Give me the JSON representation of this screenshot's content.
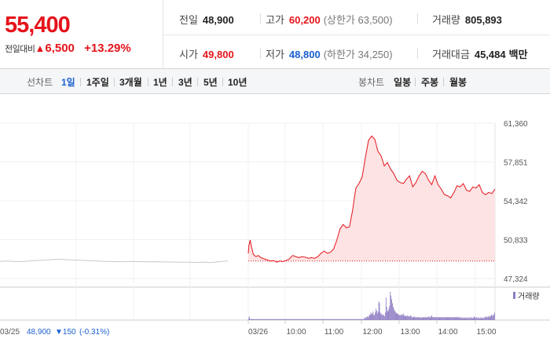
{
  "quote": {
    "price": "55,400",
    "change_label": "전일대비",
    "change_arrow": "▲",
    "change_value": "6,500",
    "change_pct": "+13.29%"
  },
  "stats": {
    "prev_label": "전일",
    "prev_value": "48,900",
    "high_label": "고가",
    "high_value": "60,200",
    "high_sub": "(상한가 63,500)",
    "volume_label": "거래량",
    "volume_value": "805,893",
    "open_label": "시가",
    "open_value": "49,800",
    "low_label": "저가",
    "low_value": "48,800",
    "low_sub": "(하한가 34,250)",
    "amount_label": "거래대금",
    "amount_value": "45,484",
    "amount_unit": "백만"
  },
  "tabs": {
    "line_label": "선차트",
    "line_tabs": [
      "1일",
      "1주일",
      "3개월",
      "1년",
      "3년",
      "5년",
      "10년"
    ],
    "line_active": 0,
    "candle_label": "봉차트",
    "candle_tabs": [
      "일봉",
      "주봉",
      "월봉"
    ]
  },
  "colors": {
    "up": "#e5141b",
    "down": "#1a5fd0",
    "prev_day_line": "#c8c8c8",
    "area_fill": "#fde3e3",
    "volume_bar": "#8e7cc3"
  },
  "chart_data": {
    "type": "line",
    "y_ticks": [
      "61,360",
      "57,851",
      "54,342",
      "50,833",
      "47,324"
    ],
    "ylim": [
      47324,
      61360
    ],
    "x_ticks": [
      "03/25",
      "03/26",
      "10:00",
      "11:00",
      "12:00",
      "13:00",
      "14:00",
      "15:00"
    ],
    "prev_day_info": {
      "date": "03/25",
      "price": "48,900",
      "change": "▼150",
      "pct": "(-0.31%)"
    },
    "volume_legend": "거래량",
    "prev_day_series": {
      "name": "03/25",
      "values": [
        48860,
        48900,
        48840,
        48870,
        48930,
        48960,
        49010,
        49060,
        49030,
        49000,
        48960,
        48930,
        48900,
        48870,
        48850,
        48840,
        48860,
        48850,
        48830,
        48840,
        48820,
        48810,
        48790,
        48800,
        48780,
        48790,
        48760,
        48850,
        48900
      ]
    },
    "today_series": {
      "name": "03/26",
      "x": [
        0,
        1,
        3,
        5,
        8,
        12,
        16,
        20,
        25,
        30,
        35,
        40,
        45,
        50,
        55,
        60,
        65,
        70,
        75,
        80,
        85,
        90,
        95,
        100,
        105,
        110,
        115,
        120,
        125,
        130,
        135,
        140,
        145,
        150,
        155,
        160,
        165,
        170,
        175,
        180,
        185,
        190,
        195,
        200,
        205,
        210,
        215,
        220,
        225,
        230,
        235,
        240,
        245,
        250,
        255,
        260,
        265,
        270,
        275,
        280,
        285,
        290,
        295,
        300,
        305,
        310,
        315,
        320,
        325,
        330,
        335,
        340,
        345,
        350,
        355,
        360,
        365,
        370,
        375,
        380,
        385,
        390
      ],
      "values": [
        49600,
        50300,
        50800,
        50200,
        49500,
        49300,
        49400,
        49200,
        49100,
        49000,
        48900,
        48950,
        48800,
        48900,
        48850,
        48950,
        49100,
        49400,
        49300,
        49200,
        49300,
        49250,
        49150,
        49200,
        49150,
        49300,
        49600,
        49800,
        49600,
        49700,
        50000,
        50800,
        51800,
        52200,
        51900,
        52000,
        53500,
        55500,
        55900,
        56500,
        58200,
        59800,
        60200,
        59900,
        58800,
        58400,
        57500,
        57800,
        57200,
        56800,
        56200,
        56000,
        55900,
        56300,
        56600,
        55600,
        56000,
        56600,
        57000,
        56800,
        56200,
        55800,
        56600,
        55800,
        55400,
        54900,
        54800,
        54600,
        55100,
        55700,
        55600,
        55900,
        55300,
        55200,
        55600,
        55500,
        55800,
        55100,
        54900,
        55100,
        55000,
        55400
      ]
    },
    "volume_series": {
      "name": "거래량",
      "values": [
        2,
        4,
        1,
        1,
        1,
        1,
        1,
        1,
        1,
        1,
        1,
        1,
        1,
        1,
        1,
        1,
        1,
        1,
        1,
        1,
        1,
        1,
        1,
        1,
        1,
        1,
        1,
        1,
        1,
        1,
        1,
        1,
        1,
        1,
        1,
        1,
        1,
        1,
        1,
        1,
        1,
        1,
        1,
        1,
        1,
        1,
        1,
        1,
        1,
        1,
        1,
        1,
        1,
        1,
        1,
        1,
        1,
        1,
        1,
        1,
        1,
        1,
        1,
        1,
        1,
        1,
        1,
        1,
        1,
        1,
        1,
        1,
        1,
        1,
        1,
        1,
        1,
        1,
        1,
        1,
        1,
        1,
        1,
        1,
        1,
        1,
        1,
        1,
        1,
        1,
        1,
        1,
        1,
        1,
        1,
        1,
        1,
        1,
        1,
        1,
        1,
        1,
        1,
        1,
        1,
        1,
        1,
        1,
        1,
        1,
        1,
        1,
        1,
        1,
        1,
        1,
        1,
        1,
        1,
        1,
        1,
        1,
        1,
        1,
        1,
        1,
        1,
        1,
        1,
        1,
        1,
        1,
        1,
        1,
        1,
        1,
        1,
        1,
        1,
        1,
        1,
        1,
        1,
        1,
        1,
        1,
        1,
        1,
        1,
        1,
        1,
        1,
        1,
        1,
        1,
        1,
        1,
        1,
        1,
        1,
        1,
        2,
        3,
        2,
        3,
        4,
        3,
        4,
        6,
        5,
        8,
        7,
        6,
        9,
        6,
        5,
        8,
        12,
        10,
        7,
        9,
        20,
        18,
        8,
        6,
        7,
        5,
        6,
        5,
        4,
        8,
        24,
        14,
        9,
        10,
        12,
        15,
        30,
        26,
        22,
        18,
        14,
        12,
        10,
        9,
        8,
        7,
        7,
        6,
        6,
        5,
        5,
        6,
        5,
        6,
        7,
        5,
        4,
        5,
        4,
        4,
        5,
        4,
        4,
        4,
        5,
        4,
        3,
        3,
        3,
        4,
        3,
        3,
        3,
        3,
        3,
        3,
        3,
        3,
        3,
        2,
        3,
        3,
        3,
        3,
        3,
        3,
        3,
        3,
        3,
        4,
        3,
        3,
        3,
        5,
        4,
        3,
        3,
        3,
        3,
        3,
        3,
        3,
        3,
        3,
        3,
        3,
        3,
        3,
        3,
        3,
        3,
        3,
        3,
        3,
        3,
        3,
        3,
        3,
        3,
        3,
        3,
        3,
        3,
        3,
        3,
        3,
        3,
        3,
        3,
        3,
        3,
        3,
        3,
        3,
        2,
        3,
        2,
        3,
        2,
        2,
        3,
        2,
        3,
        2,
        2,
        3,
        2,
        3,
        2,
        3,
        2,
        2,
        3,
        4,
        3,
        2,
        3,
        2,
        3,
        2,
        2,
        3,
        2,
        2,
        3,
        2,
        2,
        3,
        3,
        4,
        3,
        3,
        4,
        4,
        3,
        4,
        5,
        6,
        4,
        5,
        6,
        8
      ]
    }
  }
}
